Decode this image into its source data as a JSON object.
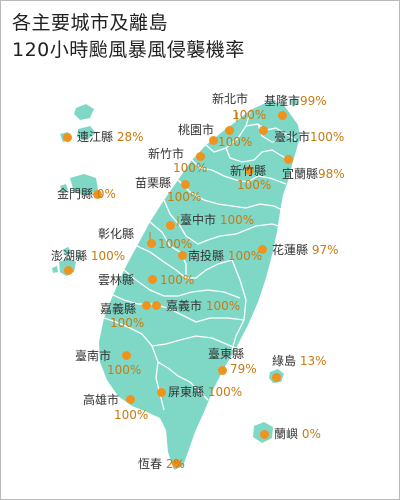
{
  "title_line1": "各主要城市及離島",
  "title_line2": "120小時颱風暴風侵襲機率",
  "colors": {
    "land": "#7fd8c6",
    "border": "#ffffff",
    "dot": "#f0921e",
    "percent_text": "#c77a10",
    "frame": "#b9b9b9"
  },
  "locations": [
    {
      "id": "keelung",
      "name": "基隆市",
      "prob": "99%"
    },
    {
      "id": "new-taipei",
      "name": "新北市",
      "prob": "100%"
    },
    {
      "id": "taipei",
      "name": "臺北市",
      "prob": "100%"
    },
    {
      "id": "taoyuan",
      "name": "桃園市",
      "prob": "100%"
    },
    {
      "id": "hsinchu-city",
      "name": "新竹市",
      "prob": "100%"
    },
    {
      "id": "hsinchu-county",
      "name": "新竹縣",
      "prob": "100%"
    },
    {
      "id": "yilan",
      "name": "宜蘭縣",
      "prob": "98%"
    },
    {
      "id": "miaoli",
      "name": "苗栗縣",
      "prob": "100%"
    },
    {
      "id": "lienchiang",
      "name": "連江縣",
      "prob": "28%"
    },
    {
      "id": "kinmen",
      "name": "金門縣",
      "prob": "0%"
    },
    {
      "id": "taichung",
      "name": "臺中市",
      "prob": "100%"
    },
    {
      "id": "changhua",
      "name": "彰化縣",
      "prob": "100%"
    },
    {
      "id": "nantou",
      "name": "南投縣",
      "prob": "100%"
    },
    {
      "id": "hualien",
      "name": "花蓮縣",
      "prob": "97%"
    },
    {
      "id": "penghu",
      "name": "澎湖縣",
      "prob": "100%"
    },
    {
      "id": "yunlin",
      "name": "雲林縣",
      "prob": "100%"
    },
    {
      "id": "chiayi-county",
      "name": "嘉義縣",
      "prob": "100%"
    },
    {
      "id": "chiayi-city",
      "name": "嘉義市",
      "prob": "100%"
    },
    {
      "id": "tainan",
      "name": "臺南市",
      "prob": "100%"
    },
    {
      "id": "taitung",
      "name": "臺東縣",
      "prob": "79%"
    },
    {
      "id": "green-island",
      "name": "綠島",
      "prob": "13%"
    },
    {
      "id": "kaohsiung",
      "name": "高雄市",
      "prob": "100%"
    },
    {
      "id": "pingtung",
      "name": "屏東縣",
      "prob": "100%"
    },
    {
      "id": "orchid-island",
      "name": "蘭嶼",
      "prob": "0%"
    },
    {
      "id": "hengchun",
      "name": "恆春",
      "prob": "2%"
    }
  ]
}
